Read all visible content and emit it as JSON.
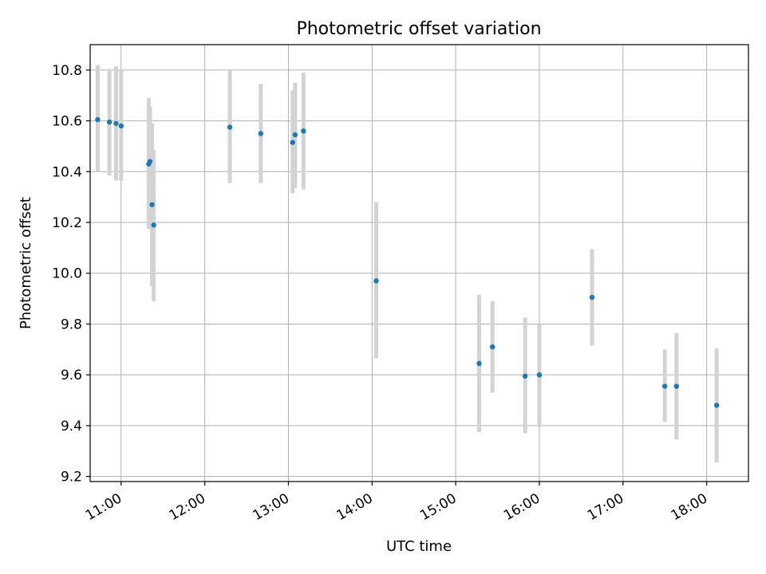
{
  "chart_data": {
    "type": "scatter",
    "title": "Photometric offset variation",
    "xlabel": "UTC time",
    "ylabel": "Photometric offset",
    "xlim": [
      10.63,
      18.5
    ],
    "ylim": [
      9.18,
      10.9
    ],
    "grid": true,
    "x_ticks": [
      {
        "value": 11,
        "label": "11:00"
      },
      {
        "value": 12,
        "label": "12:00"
      },
      {
        "value": 13,
        "label": "13:00"
      },
      {
        "value": 14,
        "label": "14:00"
      },
      {
        "value": 15,
        "label": "15:00"
      },
      {
        "value": 16,
        "label": "16:00"
      },
      {
        "value": 17,
        "label": "17:00"
      },
      {
        "value": 18,
        "label": "18:00"
      }
    ],
    "y_ticks": [
      {
        "value": 9.2,
        "label": "9.2"
      },
      {
        "value": 9.4,
        "label": "9.4"
      },
      {
        "value": 9.6,
        "label": "9.6"
      },
      {
        "value": 9.8,
        "label": "9.8"
      },
      {
        "value": 10.0,
        "label": "10.0"
      },
      {
        "value": 10.2,
        "label": "10.2"
      },
      {
        "value": 10.4,
        "label": "10.4"
      },
      {
        "value": 10.6,
        "label": "10.6"
      },
      {
        "value": 10.8,
        "label": "10.8"
      }
    ],
    "series": [
      {
        "name": "offset",
        "color": "#1f77b4",
        "errorbar_color": "#d3d3d3",
        "points": [
          {
            "x": 10.72,
            "y": 10.605,
            "err_low": 10.4,
            "err_high": 10.82
          },
          {
            "x": 10.86,
            "y": 10.595,
            "err_low": 10.385,
            "err_high": 10.805
          },
          {
            "x": 10.94,
            "y": 10.59,
            "err_low": 10.365,
            "err_high": 10.815
          },
          {
            "x": 11.0,
            "y": 10.58,
            "err_low": 10.365,
            "err_high": 10.8
          },
          {
            "x": 11.33,
            "y": 10.43,
            "err_low": 10.175,
            "err_high": 10.69
          },
          {
            "x": 11.345,
            "y": 10.44,
            "err_low": 10.205,
            "err_high": 10.655
          },
          {
            "x": 11.37,
            "y": 10.27,
            "err_low": 9.95,
            "err_high": 10.59
          },
          {
            "x": 11.39,
            "y": 10.19,
            "err_low": 9.89,
            "err_high": 10.485
          },
          {
            "x": 12.3,
            "y": 10.575,
            "err_low": 10.355,
            "err_high": 10.8
          },
          {
            "x": 12.67,
            "y": 10.55,
            "err_low": 10.355,
            "err_high": 10.745
          },
          {
            "x": 13.05,
            "y": 10.515,
            "err_low": 10.315,
            "err_high": 10.72
          },
          {
            "x": 13.08,
            "y": 10.545,
            "err_low": 10.335,
            "err_high": 10.75
          },
          {
            "x": 13.18,
            "y": 10.56,
            "err_low": 10.33,
            "err_high": 10.79
          },
          {
            "x": 14.05,
            "y": 9.97,
            "err_low": 9.665,
            "err_high": 10.28
          },
          {
            "x": 15.28,
            "y": 9.645,
            "err_low": 9.375,
            "err_high": 9.915
          },
          {
            "x": 15.44,
            "y": 9.71,
            "err_low": 9.53,
            "err_high": 9.89
          },
          {
            "x": 15.83,
            "y": 9.595,
            "err_low": 9.37,
            "err_high": 9.825
          },
          {
            "x": 16.0,
            "y": 9.6,
            "err_low": 9.4,
            "err_high": 9.8
          },
          {
            "x": 16.63,
            "y": 9.905,
            "err_low": 9.715,
            "err_high": 10.095
          },
          {
            "x": 17.5,
            "y": 9.555,
            "err_low": 9.415,
            "err_high": 9.7
          },
          {
            "x": 17.64,
            "y": 9.555,
            "err_low": 9.345,
            "err_high": 9.765
          },
          {
            "x": 18.12,
            "y": 9.48,
            "err_low": 9.255,
            "err_high": 9.705
          }
        ]
      }
    ]
  }
}
